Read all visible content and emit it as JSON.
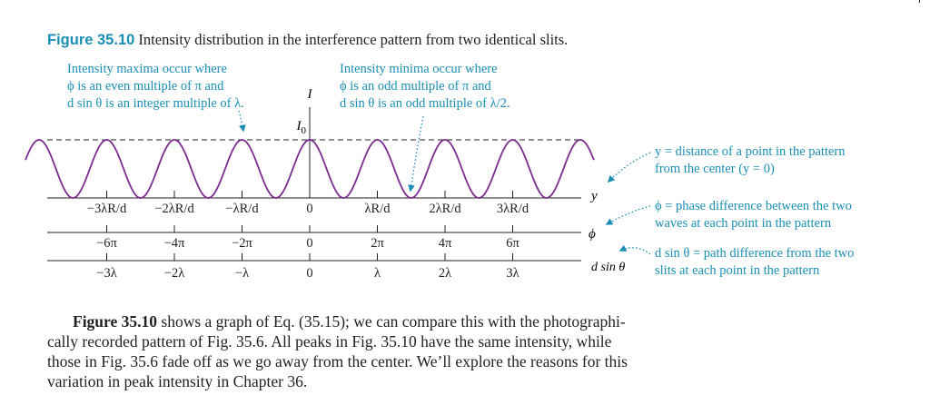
{
  "caption": {
    "figure_number": "Figure 35.10",
    "text": "Intensity distribution in the interference pattern from two identical slits."
  },
  "annotations": {
    "maxima": [
      "Intensity maxima occur where",
      "ϕ is an even multiple of π and",
      "d sin θ is an integer multiple of λ."
    ],
    "minima": [
      "Intensity minima occur where",
      "ϕ is an odd multiple of π and",
      "d sin θ is an odd multiple of λ/2."
    ],
    "y_def": [
      "y = distance of a point in the pattern",
      "from the center (y = 0)"
    ],
    "phi_def": [
      "ϕ = phase difference between the two",
      "waves at each point in the pattern"
    ],
    "dsin_def": [
      "d sin θ = path difference from the two",
      "slits at each point in the pattern"
    ]
  },
  "axis_labels": {
    "I": "I",
    "I0": "I0",
    "y": "y",
    "phi": "ϕ",
    "dsin": "d sin θ"
  },
  "chart_data": {
    "type": "line",
    "function": "I = I0 cos^2(phi/2)",
    "x_range_wavelengths": [
      -4.2,
      4.2
    ],
    "y_range": [
      0,
      1
    ],
    "scales": [
      {
        "name": "y",
        "ticks": [
          "−3λR/d",
          "−2λR/d",
          "−λR/d",
          "0",
          "λR/d",
          "2λR/d",
          "3λR/d"
        ]
      },
      {
        "name": "ϕ",
        "ticks": [
          "−6π",
          "−4π",
          "−2π",
          "0",
          "2π",
          "4π",
          "6π"
        ]
      },
      {
        "name": "d sin θ",
        "ticks": [
          "−3λ",
          "−2λ",
          "−λ",
          "0",
          "λ",
          "2λ",
          "3λ"
        ]
      }
    ],
    "tick_values": [
      -3,
      -2,
      -1,
      0,
      1,
      2,
      3
    ]
  },
  "colors": {
    "curve": "#7b2d8e",
    "accent": "#1b8fb3",
    "text": "#231f20"
  },
  "body": {
    "lead": "Figure 35.10",
    "line1": " shows a graph of Eq. (35.15); we can compare this with the photographi-",
    "line2": "cally recorded pattern of Fig. 35.6. All peaks in Fig. 35.10 have the same intensity, while",
    "line3": "those in Fig. 35.6 fade off as we go away from the center. We’ll explore the reasons for this",
    "line4": "variation in peak intensity in Chapter 36."
  }
}
